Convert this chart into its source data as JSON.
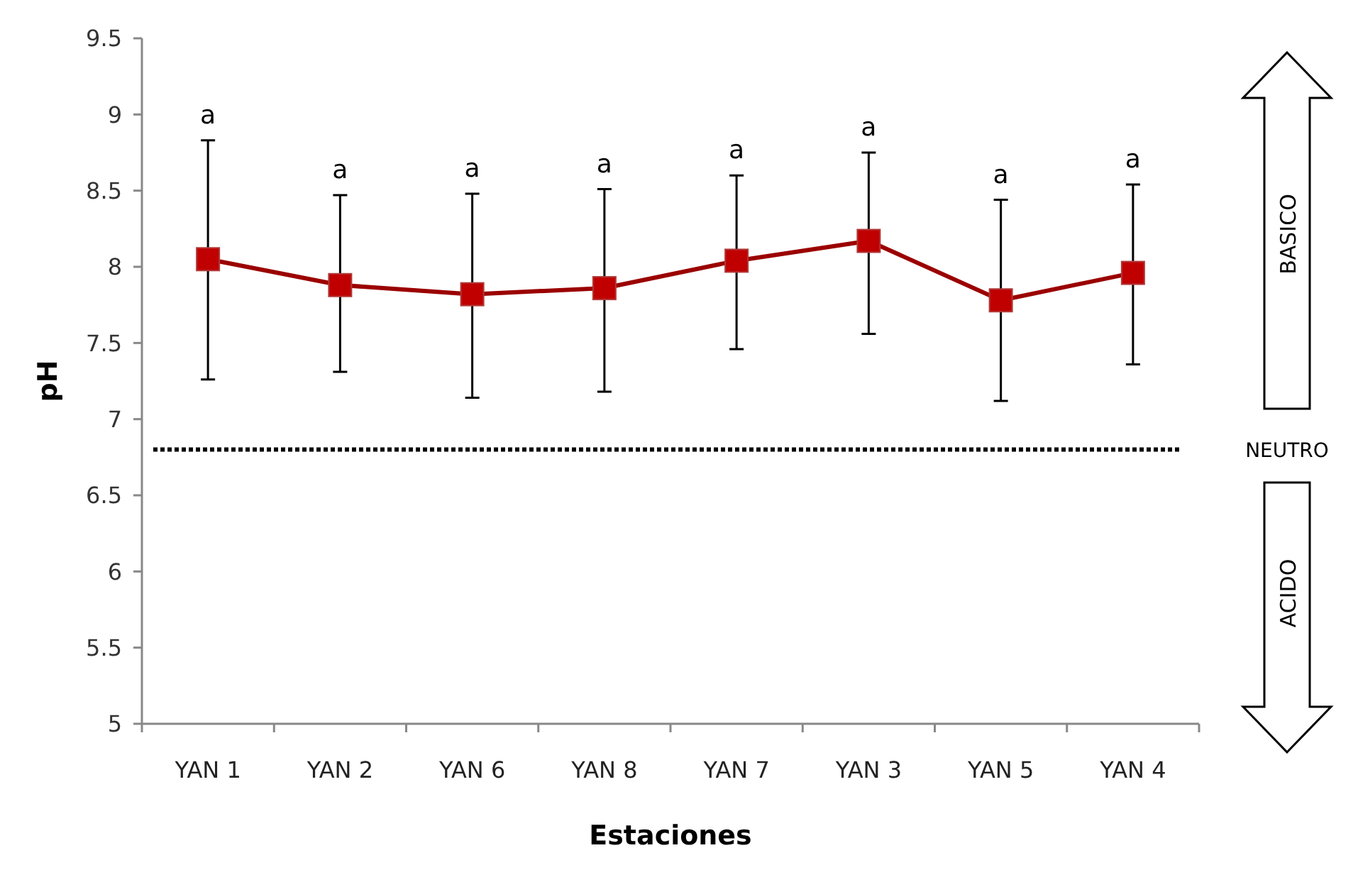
{
  "chart_data": {
    "type": "line",
    "xlabel": "Estaciones",
    "ylabel": "pH",
    "categories": [
      "YAN 1",
      "YAN 2",
      "YAN 6",
      "YAN 8",
      "YAN 7",
      "YAN 3",
      "YAN 5",
      "YAN 4"
    ],
    "series": [
      {
        "color": "#c00000",
        "values": [
          8.05,
          7.88,
          7.82,
          7.86,
          8.04,
          8.17,
          7.78,
          7.96
        ],
        "errors": [
          [
            7.26,
            8.83
          ],
          [
            7.31,
            8.47
          ],
          [
            7.14,
            8.48
          ],
          [
            7.18,
            8.51
          ],
          [
            7.46,
            8.6
          ],
          [
            7.56,
            8.75
          ],
          [
            7.12,
            8.44
          ],
          [
            7.36,
            8.54
          ]
        ]
      }
    ],
    "marker": "square",
    "line_style": "solid",
    "ylim": [
      5,
      9.5
    ],
    "yticks": [
      5,
      5.5,
      6,
      6.5,
      7,
      7.5,
      8,
      8.5,
      9,
      9.5
    ],
    "ref_lines": [
      {
        "axis": "y",
        "value": 6.8,
        "color": "#000000",
        "line_style": "dotted"
      }
    ],
    "annotations": [
      {
        "text": "a",
        "x": "YAN 1",
        "y": 8.83
      },
      {
        "text": "a",
        "x": "YAN 2",
        "y": 8.47
      },
      {
        "text": "a",
        "x": "YAN 6",
        "y": 8.48
      },
      {
        "text": "a",
        "x": "YAN 8",
        "y": 8.51
      },
      {
        "text": "a",
        "x": "YAN 7",
        "y": 8.6
      },
      {
        "text": "a",
        "x": "YAN 3",
        "y": 8.75
      },
      {
        "text": "a",
        "x": "YAN 5",
        "y": 8.44
      },
      {
        "text": "a",
        "x": "YAN 4",
        "y": 8.54
      },
      "BASICO",
      "NEUTRO",
      "ACIDO"
    ],
    "tick_labels": true
  }
}
